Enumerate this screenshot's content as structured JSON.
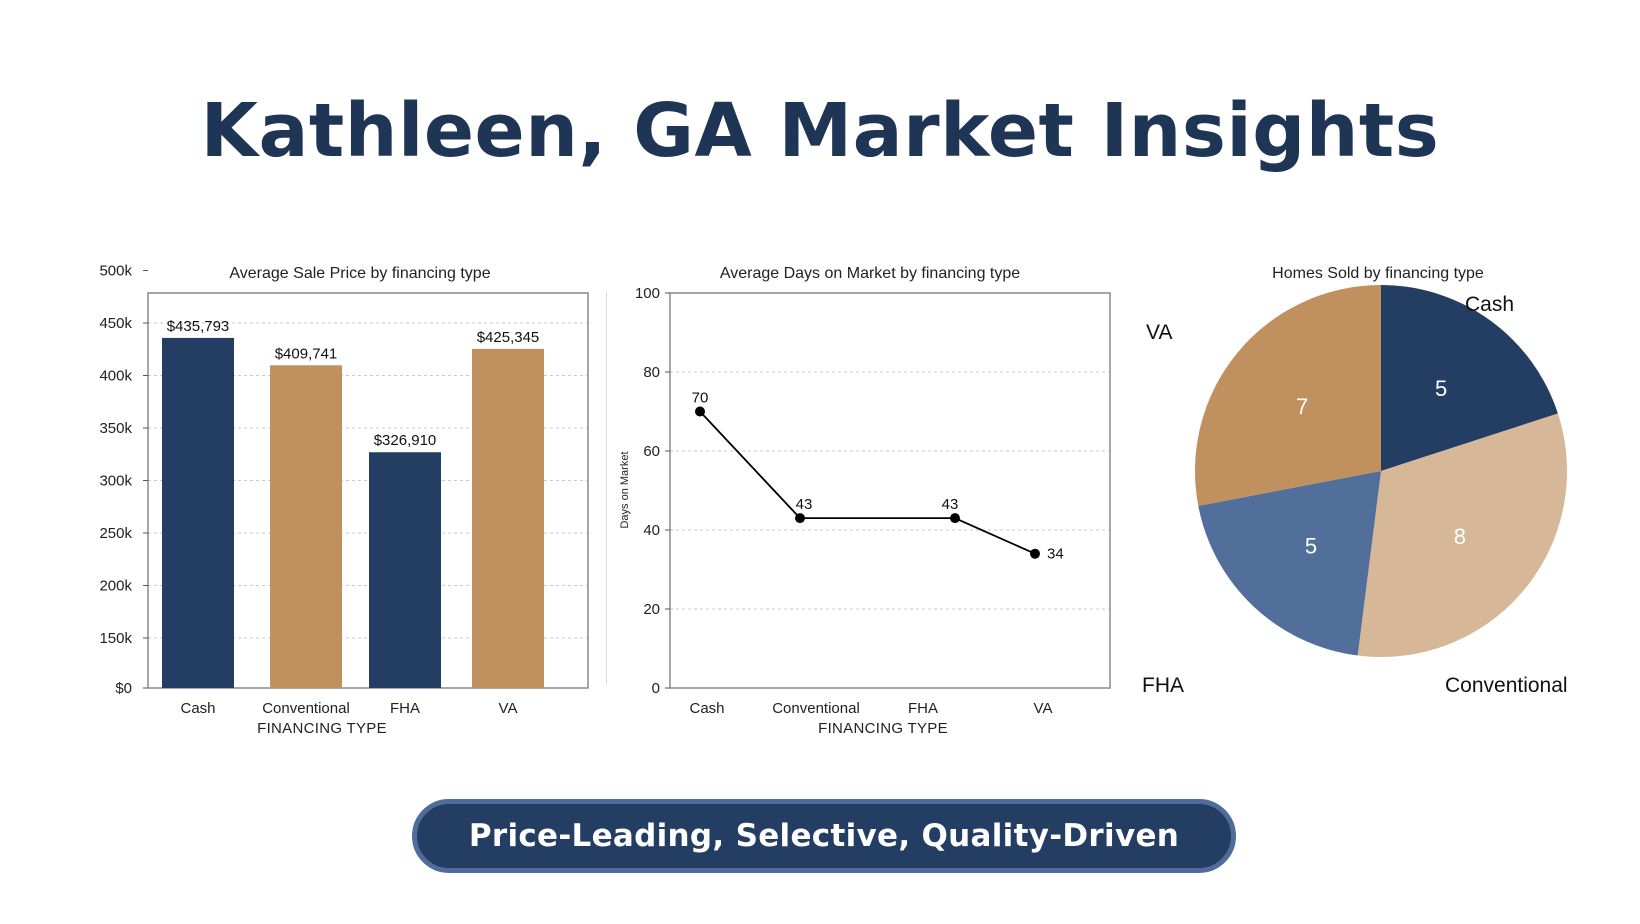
{
  "title": "Kathleen, GA Market Insights",
  "banner": "Price-Leading, Selective, Quality-Driven",
  "colors": {
    "navy": "#233e62",
    "tan": "#c0905e",
    "blue": "#526f9c",
    "beige": "#d6b797",
    "title": "#1f3556"
  },
  "chart_data": [
    {
      "type": "bar",
      "title": "Average Sale Price  by financing type",
      "xlabel": "FINANCING TYPE",
      "ylabel": "",
      "categories": [
        "Cash",
        "Conventional",
        "FHA",
        "VA"
      ],
      "values": [
        435793,
        409741,
        326910,
        425345
      ],
      "value_labels": [
        "$435,793",
        "$409,741",
        "$326,910",
        "$425,345"
      ],
      "bar_colors": [
        "#233e62",
        "#c0905e",
        "#233e62",
        "#c0905e"
      ],
      "yticks": [
        {
          "v": 0,
          "label": "$0"
        },
        {
          "v": 150000,
          "label": "150k"
        },
        {
          "v": 200000,
          "label": "200k"
        },
        {
          "v": 250000,
          "label": "250k"
        },
        {
          "v": 300000,
          "label": "300k"
        },
        {
          "v": 350000,
          "label": "350k"
        },
        {
          "v": 400000,
          "label": "400k"
        },
        {
          "v": 450000,
          "label": "450k"
        },
        {
          "v": 500000,
          "label": "500k"
        }
      ],
      "grid": true
    },
    {
      "type": "line",
      "title": "Average Days on Market  by financing type",
      "xlabel": "FINANCING TYPE",
      "ylabel": "Days on Market",
      "categories": [
        "Cash",
        "Conventional",
        "FHA",
        "VA"
      ],
      "values": [
        70,
        43,
        43,
        34
      ],
      "ylim": [
        0,
        100
      ],
      "yticks": [
        0,
        20,
        40,
        60,
        80,
        100
      ],
      "grid": true
    },
    {
      "type": "pie",
      "title": "Homes Sold by financing type",
      "categories": [
        "Cash",
        "Conventional",
        "FHA",
        "VA"
      ],
      "values": [
        5,
        8,
        5,
        7
      ],
      "colors": [
        "#233e62",
        "#d6b797",
        "#526f9c",
        "#c0905e"
      ]
    }
  ]
}
